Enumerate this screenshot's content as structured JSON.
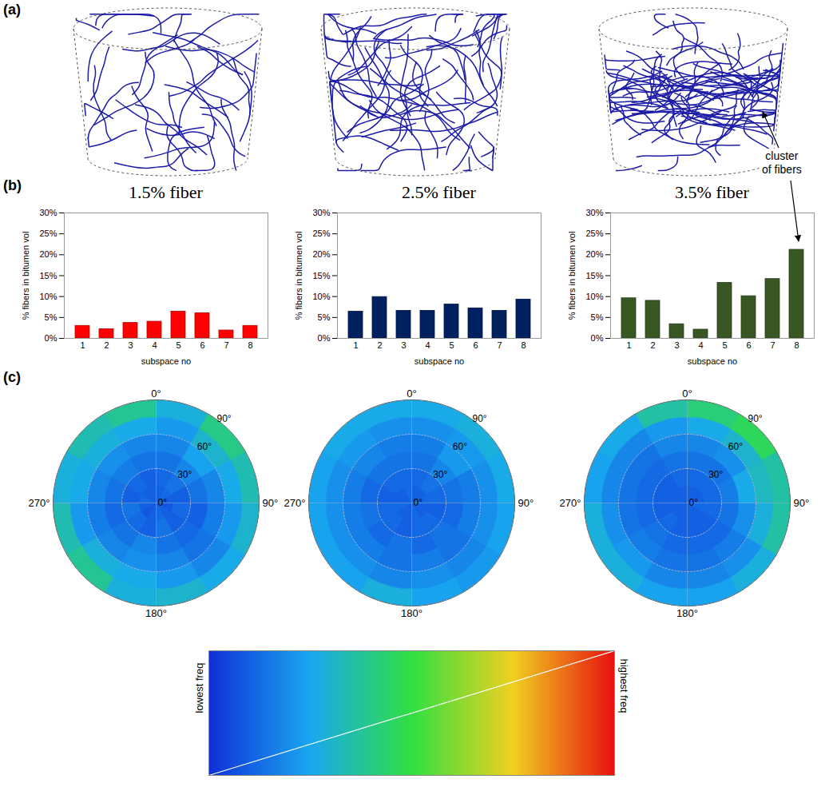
{
  "panel_labels": [
    "(a)",
    "(b)",
    "(c)"
  ],
  "annotation": "cluster of fibers",
  "chart_data": [
    {
      "type": "bar",
      "title": "1.5% fiber",
      "xlabel": "subspace no",
      "ylabel": "% fibers in bitumen vol",
      "categories": [
        1,
        2,
        3,
        4,
        5,
        6,
        7,
        8
      ],
      "values": [
        3.0,
        2.2,
        3.7,
        4.0,
        6.4,
        6.0,
        1.9,
        3.0
      ],
      "color": "#ff0000",
      "ylim": [
        0,
        30
      ],
      "yticks": [
        {
          "value": 0,
          "label": "0%"
        },
        {
          "value": 5,
          "label": "5%"
        },
        {
          "value": 10,
          "label": "10%"
        },
        {
          "value": 15,
          "label": "15%"
        },
        {
          "value": 20,
          "label": "20%"
        },
        {
          "value": 25,
          "label": "25%"
        },
        {
          "value": 30,
          "label": "30%"
        }
      ]
    },
    {
      "type": "bar",
      "title": "2.5% fiber",
      "xlabel": "subspace no",
      "ylabel": "% fibers in bitumen vol",
      "categories": [
        1,
        2,
        3,
        4,
        5,
        6,
        7,
        8
      ],
      "values": [
        6.4,
        9.9,
        6.6,
        6.6,
        8.1,
        7.2,
        6.6,
        9.3
      ],
      "color": "#002060",
      "ylim": [
        0,
        30
      ],
      "yticks": [
        {
          "value": 0,
          "label": "0%"
        },
        {
          "value": 5,
          "label": "5%"
        },
        {
          "value": 10,
          "label": "10%"
        },
        {
          "value": 15,
          "label": "15%"
        },
        {
          "value": 20,
          "label": "20%"
        },
        {
          "value": 25,
          "label": "25%"
        },
        {
          "value": 30,
          "label": "30%"
        }
      ]
    },
    {
      "type": "bar",
      "title": "3.5% fiber",
      "xlabel": "subspace no",
      "ylabel": "% fibers in bitumen vol",
      "categories": [
        1,
        2,
        3,
        4,
        5,
        6,
        7,
        8
      ],
      "values": [
        9.6,
        9.0,
        3.4,
        2.1,
        13.3,
        10.1,
        14.2,
        21.2
      ],
      "color": "#385723",
      "ylim": [
        0,
        30
      ],
      "yticks": [
        {
          "value": 0,
          "label": "0%"
        },
        {
          "value": 5,
          "label": "5%"
        },
        {
          "value": 10,
          "label": "10%"
        },
        {
          "value": 15,
          "label": "15%"
        },
        {
          "value": 20,
          "label": "20%"
        },
        {
          "value": 25,
          "label": "25%"
        },
        {
          "value": 30,
          "label": "30%"
        }
      ]
    },
    {
      "type": "polar_heatmap",
      "rlim": [
        0,
        90
      ],
      "radius_edges": [
        0,
        15,
        30,
        45,
        60,
        75,
        90
      ],
      "azimuth_edges": [
        0,
        30,
        60,
        90,
        120,
        150,
        180,
        210,
        240,
        270,
        300,
        330,
        360
      ],
      "rticks": [
        {
          "value": 0,
          "label": "0°"
        },
        {
          "value": 30,
          "label": "30°"
        },
        {
          "value": 60,
          "label": "60°"
        },
        {
          "value": 90,
          "label": "90°"
        }
      ],
      "azimuth_ticks": [
        {
          "value": 0,
          "label": "0°"
        },
        {
          "value": 90,
          "label": "90°"
        },
        {
          "value": 180,
          "label": "180°"
        },
        {
          "value": 270,
          "label": "270°"
        }
      ],
      "values": [
        [
          0.1,
          0.12,
          0.1,
          0.08,
          0.1,
          0.12,
          0.1,
          0.08,
          0.1,
          0.12,
          0.1,
          0.1
        ],
        [
          0.12,
          0.14,
          0.1,
          0.12,
          0.1,
          0.14,
          0.1,
          0.12,
          0.14,
          0.1,
          0.12,
          0.1
        ],
        [
          0.14,
          0.18,
          0.14,
          0.1,
          0.12,
          0.14,
          0.18,
          0.14,
          0.12,
          0.14,
          0.16,
          0.14
        ],
        [
          0.18,
          0.24,
          0.18,
          0.16,
          0.14,
          0.18,
          0.2,
          0.18,
          0.16,
          0.18,
          0.2,
          0.18
        ],
        [
          0.22,
          0.3,
          0.26,
          0.22,
          0.18,
          0.22,
          0.26,
          0.28,
          0.22,
          0.26,
          0.28,
          0.26
        ],
        [
          0.28,
          0.4,
          0.34,
          0.3,
          0.26,
          0.3,
          0.28,
          0.38,
          0.34,
          0.28,
          0.34,
          0.38
        ]
      ]
    },
    {
      "type": "polar_heatmap",
      "rlim": [
        0,
        90
      ],
      "radius_edges": [
        0,
        15,
        30,
        45,
        60,
        75,
        90
      ],
      "azimuth_edges": [
        0,
        30,
        60,
        90,
        120,
        150,
        180,
        210,
        240,
        270,
        300,
        330,
        360
      ],
      "rticks": [
        {
          "value": 0,
          "label": "0°"
        },
        {
          "value": 30,
          "label": "30°"
        },
        {
          "value": 60,
          "label": "60°"
        },
        {
          "value": 90,
          "label": "90°"
        }
      ],
      "azimuth_ticks": [
        {
          "value": 0,
          "label": "0°"
        },
        {
          "value": 90,
          "label": "90°"
        },
        {
          "value": 180,
          "label": "180°"
        },
        {
          "value": 270,
          "label": "270°"
        }
      ],
      "values": [
        [
          0.1,
          0.1,
          0.12,
          0.1,
          0.1,
          0.12,
          0.1,
          0.1,
          0.12,
          0.1,
          0.1,
          0.12
        ],
        [
          0.12,
          0.14,
          0.12,
          0.1,
          0.12,
          0.12,
          0.1,
          0.12,
          0.12,
          0.1,
          0.12,
          0.12
        ],
        [
          0.14,
          0.18,
          0.14,
          0.12,
          0.14,
          0.12,
          0.14,
          0.12,
          0.14,
          0.12,
          0.14,
          0.14
        ],
        [
          0.16,
          0.22,
          0.16,
          0.16,
          0.14,
          0.16,
          0.14,
          0.16,
          0.16,
          0.16,
          0.18,
          0.16
        ],
        [
          0.2,
          0.22,
          0.2,
          0.2,
          0.18,
          0.2,
          0.18,
          0.2,
          0.2,
          0.2,
          0.22,
          0.2
        ],
        [
          0.26,
          0.28,
          0.26,
          0.24,
          0.22,
          0.24,
          0.28,
          0.24,
          0.24,
          0.24,
          0.26,
          0.26
        ]
      ]
    },
    {
      "type": "polar_heatmap",
      "rlim": [
        0,
        90
      ],
      "radius_edges": [
        0,
        15,
        30,
        45,
        60,
        75,
        90
      ],
      "azimuth_edges": [
        0,
        30,
        60,
        90,
        120,
        150,
        180,
        210,
        240,
        270,
        300,
        330,
        360
      ],
      "rticks": [
        {
          "value": 0,
          "label": "0°"
        },
        {
          "value": 30,
          "label": "30°"
        },
        {
          "value": 60,
          "label": "60°"
        },
        {
          "value": 90,
          "label": "90°"
        }
      ],
      "azimuth_ticks": [
        {
          "value": 0,
          "label": "0°"
        },
        {
          "value": 90,
          "label": "90°"
        },
        {
          "value": 180,
          "label": "180°"
        },
        {
          "value": 270,
          "label": "270°"
        }
      ],
      "values": [
        [
          0.1,
          0.1,
          0.1,
          0.12,
          0.1,
          0.1,
          0.1,
          0.1,
          0.1,
          0.1,
          0.1,
          0.1
        ],
        [
          0.12,
          0.12,
          0.12,
          0.12,
          0.1,
          0.1,
          0.1,
          0.12,
          0.1,
          0.1,
          0.1,
          0.12
        ],
        [
          0.14,
          0.14,
          0.16,
          0.14,
          0.12,
          0.12,
          0.12,
          0.14,
          0.12,
          0.12,
          0.12,
          0.14
        ],
        [
          0.18,
          0.2,
          0.26,
          0.2,
          0.16,
          0.14,
          0.14,
          0.16,
          0.14,
          0.14,
          0.14,
          0.18
        ],
        [
          0.26,
          0.3,
          0.32,
          0.28,
          0.2,
          0.18,
          0.18,
          0.22,
          0.2,
          0.18,
          0.18,
          0.22
        ],
        [
          0.42,
          0.46,
          0.36,
          0.36,
          0.28,
          0.24,
          0.24,
          0.28,
          0.28,
          0.24,
          0.26,
          0.36
        ]
      ]
    },
    {
      "type": "colorbar",
      "labels": [
        "lowest freq",
        "highest freq"
      ],
      "color_range": [
        0,
        1
      ],
      "colors": [
        "#1030d8",
        "#18a8f0",
        "#30e040",
        "#f0d020",
        "#e81010"
      ]
    }
  ]
}
